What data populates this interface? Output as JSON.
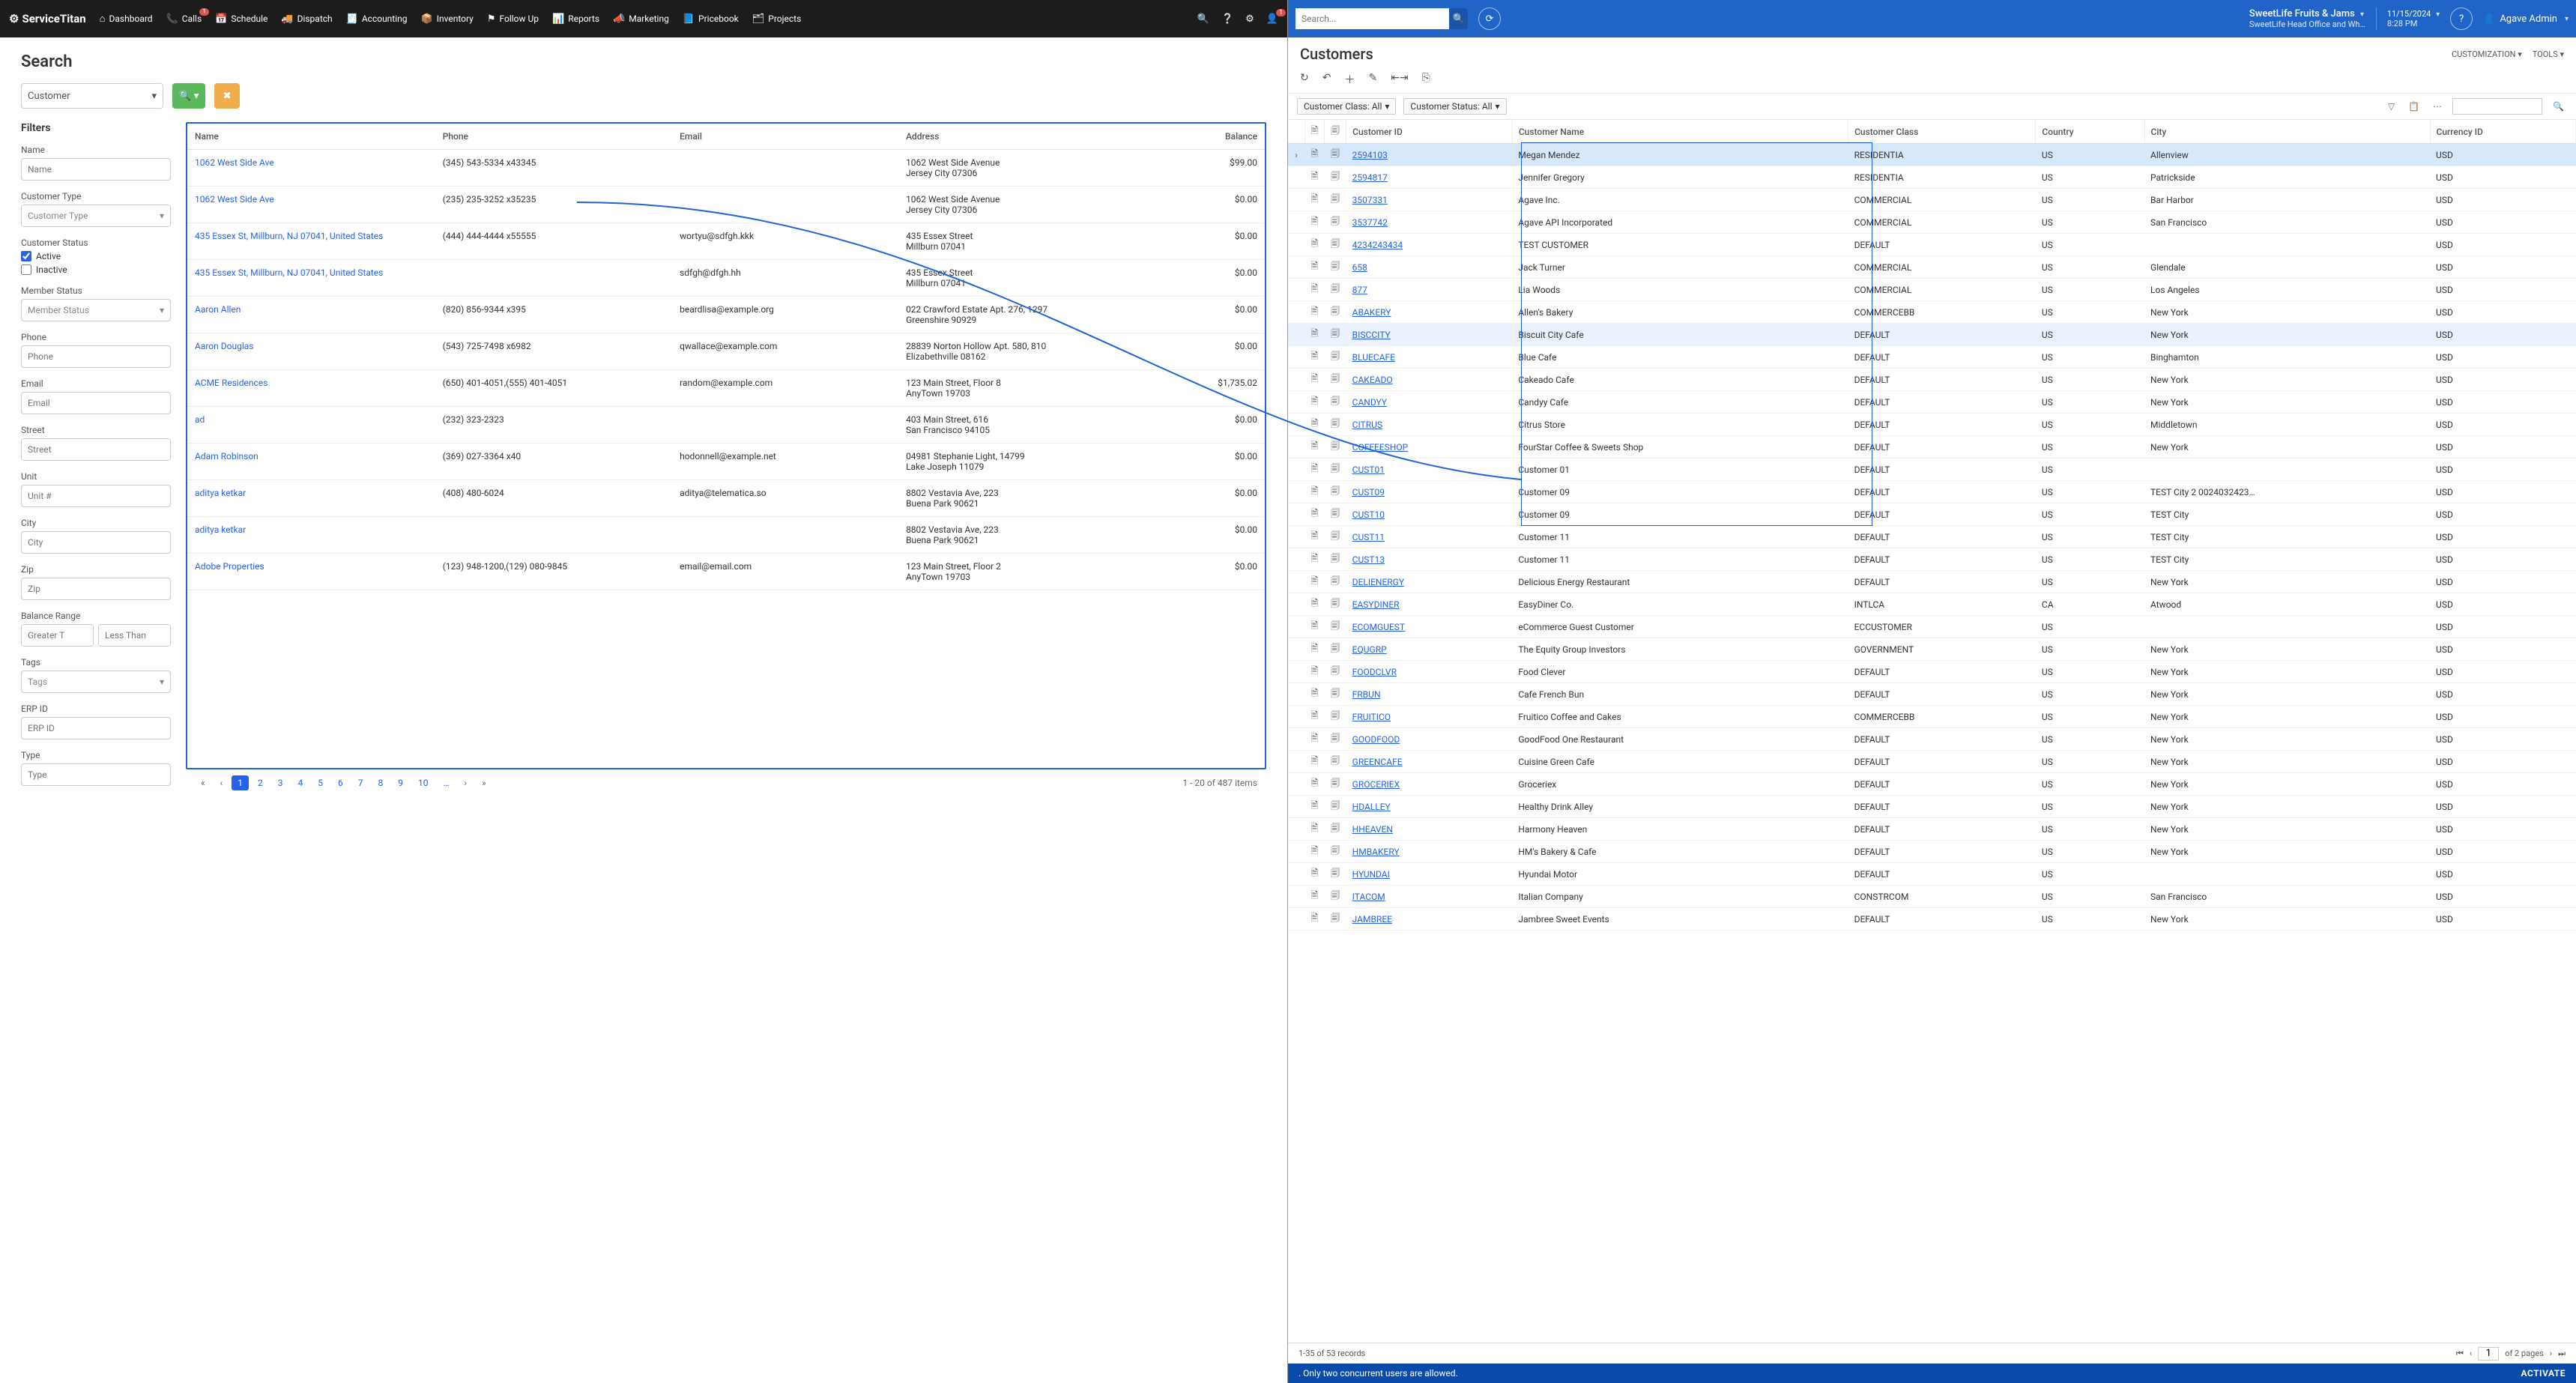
{
  "st": {
    "logo": "ServiceTitan",
    "nav": [
      "Dashboard",
      "Calls",
      "Schedule",
      "Dispatch",
      "Accounting",
      "Inventory",
      "Follow Up",
      "Reports",
      "Marketing",
      "Pricebook",
      "Projects"
    ],
    "nav_icons": [
      "⌂",
      "📞",
      "📅",
      "🚚",
      "🧾",
      "📦",
      "⚑",
      "📊",
      "📣",
      "📘",
      "🗂"
    ],
    "calls_badge": "1",
    "title": "Search",
    "entity": "Customer",
    "filters_heading": "Filters",
    "filters": {
      "name_lbl": "Name",
      "name_ph": "Name",
      "ctype_lbl": "Customer Type",
      "ctype_ph": "Customer Type",
      "cstatus_lbl": "Customer Status",
      "active": "Active",
      "inactive": "Inactive",
      "mstatus_lbl": "Member Status",
      "mstatus_ph": "Member Status",
      "phone_lbl": "Phone",
      "phone_ph": "Phone",
      "email_lbl": "Email",
      "email_ph": "Email",
      "street_lbl": "Street",
      "street_ph": "Street",
      "unit_lbl": "Unit",
      "unit_ph": "Unit #",
      "city_lbl": "City",
      "city_ph": "City",
      "zip_lbl": "Zip",
      "zip_ph": "Zip",
      "bal_lbl": "Balance Range",
      "bal_gt": "Greater T",
      "bal_lt": "Less Than",
      "tags_lbl": "Tags",
      "tags_ph": "Tags",
      "erp_lbl": "ERP ID",
      "erp_ph": "ERP ID",
      "type_lbl": "Type",
      "type_ph": "Type"
    },
    "cols": [
      "Name",
      "Phone",
      "Email",
      "Address",
      "Balance"
    ],
    "rows": [
      {
        "n": "1062 West Side Ave",
        "p": "(345) 543-5334 x43345",
        "e": "",
        "a": "1062 West Side Avenue\nJersey City 07306",
        "b": "$99.00"
      },
      {
        "n": "1062 West Side Ave",
        "p": "(235) 235-3252 x35235",
        "e": "",
        "a": "1062 West Side Avenue\nJersey City 07306",
        "b": "$0.00"
      },
      {
        "n": "435 Essex St, Millburn, NJ 07041, United States",
        "p": "(444) 444-4444 x55555",
        "e": "wortyu@sdfgh.kkk",
        "a": "435 Essex Street\nMillburn 07041",
        "b": "$0.00"
      },
      {
        "n": "435 Essex St, Millburn, NJ 07041, United States",
        "p": "",
        "e": "sdfgh@dfgh.hh",
        "a": "435 Essex Street\nMillburn 07041",
        "b": "$0.00"
      },
      {
        "n": "Aaron Allen",
        "p": "(820) 856-9344 x395",
        "e": "beardlisa@example.org",
        "a": "022 Crawford Estate Apt. 276, 1297\nGreenshire 90929",
        "b": "$0.00"
      },
      {
        "n": "Aaron Douglas",
        "p": "(543) 725-7498 x6982",
        "e": "qwallace@example.com",
        "a": "28839 Norton Hollow Apt. 580, 810\nElizabethville 08162",
        "b": "$0.00"
      },
      {
        "n": "ACME Residences",
        "p": "(650) 401-4051,(555) 401-4051",
        "e": "random@example.com",
        "a": "123 Main Street, Floor 8\nAnyTown 19703",
        "b": "$1,735.02"
      },
      {
        "n": "ad",
        "p": "(232) 323-2323",
        "e": "",
        "a": "403 Main Street, 616\nSan Francisco 94105",
        "b": "$0.00"
      },
      {
        "n": "Adam Robinson",
        "p": "(369) 027-3364 x40",
        "e": "hodonnell@example.net",
        "a": "04981 Stephanie Light, 14799\nLake Joseph 11079",
        "b": "$0.00"
      },
      {
        "n": "aditya ketkar",
        "p": "(408) 480-6024",
        "e": "aditya@telematica.so",
        "a": "8802 Vestavia Ave, 223\nBuena Park 90621",
        "b": "$0.00"
      },
      {
        "n": "aditya ketkar",
        "p": "",
        "e": "",
        "a": "8802 Vestavia Ave, 223\nBuena Park 90621",
        "b": "$0.00"
      },
      {
        "n": "Adobe Properties",
        "p": "(123) 948-1200,(129) 080-9845",
        "e": "email@email.com",
        "a": "123 Main Street, Floor 2\nAnyTown 19703",
        "b": "$0.00"
      }
    ],
    "pages": [
      "«",
      "‹",
      "1",
      "2",
      "3",
      "4",
      "5",
      "6",
      "7",
      "8",
      "9",
      "10",
      "…",
      "›",
      "»"
    ],
    "page_active": "1",
    "page_status": "1 - 20 of 487 items"
  },
  "ac": {
    "search_ph": "Search...",
    "tenant": "SweetLife Fruits & Jams",
    "tenant_sub": "SweetLife Head Office and Wh…",
    "date": "11/15/2024",
    "time": "8:28 PM",
    "user": "Agave Admin",
    "title": "Customers",
    "customization": "CUSTOMIZATION",
    "tools": "TOOLS",
    "filter_class": "Customer Class: All",
    "filter_status": "Customer Status: All",
    "cols": [
      "Customer ID",
      "Customer Name",
      "Customer Class",
      "Country",
      "City",
      "Currency ID"
    ],
    "rows": [
      {
        "id": "2594103",
        "nm": "Megan Mendez",
        "cl": "RESIDENTIA",
        "co": "US",
        "ci": "Allenview",
        "cu": "USD",
        "sel": 2
      },
      {
        "id": "2594817",
        "nm": "Jennifer Gregory",
        "cl": "RESIDENTIA",
        "co": "US",
        "ci": "Patrickside",
        "cu": "USD"
      },
      {
        "id": "3507331",
        "nm": "Agave Inc.",
        "cl": "COMMERCIAL",
        "co": "US",
        "ci": "Bar Harbor",
        "cu": "USD"
      },
      {
        "id": "3537742",
        "nm": "Agave API Incorporated",
        "cl": "COMMERCIAL",
        "co": "US",
        "ci": "San Francisco",
        "cu": "USD"
      },
      {
        "id": "4234243434",
        "nm": "TEST CUSTOMER",
        "cl": "DEFAULT",
        "co": "US",
        "ci": "",
        "cu": "USD"
      },
      {
        "id": "658",
        "nm": "Jack Turner",
        "cl": "COMMERCIAL",
        "co": "US",
        "ci": "Glendale",
        "cu": "USD"
      },
      {
        "id": "877",
        "nm": "Lia Woods",
        "cl": "COMMERCIAL",
        "co": "US",
        "ci": "Los Angeles",
        "cu": "USD"
      },
      {
        "id": "ABAKERY",
        "nm": "Allen's Bakery",
        "cl": "COMMERCEBB",
        "co": "US",
        "ci": "New York",
        "cu": "USD"
      },
      {
        "id": "BISCCITY",
        "nm": "Biscuit City Cafe",
        "cl": "DEFAULT",
        "co": "US",
        "ci": "New York",
        "cu": "USD",
        "sel": 1
      },
      {
        "id": "BLUECAFE",
        "nm": "Blue Cafe",
        "cl": "DEFAULT",
        "co": "US",
        "ci": "Binghamton",
        "cu": "USD"
      },
      {
        "id": "CAKEADO",
        "nm": "Cakeado Cafe",
        "cl": "DEFAULT",
        "co": "US",
        "ci": "New York",
        "cu": "USD"
      },
      {
        "id": "CANDYY",
        "nm": "Candyy Cafe",
        "cl": "DEFAULT",
        "co": "US",
        "ci": "New York",
        "cu": "USD"
      },
      {
        "id": "CITRUS",
        "nm": "Citrus Store",
        "cl": "DEFAULT",
        "co": "US",
        "ci": "Middletown",
        "cu": "USD"
      },
      {
        "id": "COFFEESHOP",
        "nm": "FourStar Coffee & Sweets Shop",
        "cl": "DEFAULT",
        "co": "US",
        "ci": "New York",
        "cu": "USD"
      },
      {
        "id": "CUST01",
        "nm": "Customer 01",
        "cl": "DEFAULT",
        "co": "US",
        "ci": "",
        "cu": "USD"
      },
      {
        "id": "CUST09",
        "nm": "Customer 09",
        "cl": "DEFAULT",
        "co": "US",
        "ci": "TEST City 2 0024032423…",
        "cu": "USD"
      },
      {
        "id": "CUST10",
        "nm": "Customer 09",
        "cl": "DEFAULT",
        "co": "US",
        "ci": "TEST City",
        "cu": "USD"
      },
      {
        "id": "CUST11",
        "nm": "Customer 11",
        "cl": "DEFAULT",
        "co": "US",
        "ci": "TEST City",
        "cu": "USD"
      },
      {
        "id": "CUST13",
        "nm": "Customer 11",
        "cl": "DEFAULT",
        "co": "US",
        "ci": "TEST City",
        "cu": "USD"
      },
      {
        "id": "DELIENERGY",
        "nm": "Delicious Energy Restaurant",
        "cl": "DEFAULT",
        "co": "US",
        "ci": "New York",
        "cu": "USD"
      },
      {
        "id": "EASYDINER",
        "nm": "EasyDiner Co.",
        "cl": "INTLCA",
        "co": "CA",
        "ci": "Atwood",
        "cu": "USD"
      },
      {
        "id": "ECOMGUEST",
        "nm": "eCommerce Guest Customer",
        "cl": "ECCUSTOMER",
        "co": "US",
        "ci": "",
        "cu": "USD"
      },
      {
        "id": "EQUGRP",
        "nm": "The Equity Group Investors",
        "cl": "GOVERNMENT",
        "co": "US",
        "ci": "New York",
        "cu": "USD"
      },
      {
        "id": "FOODCLVR",
        "nm": "Food Clever",
        "cl": "DEFAULT",
        "co": "US",
        "ci": "New York",
        "cu": "USD"
      },
      {
        "id": "FRBUN",
        "nm": "Cafe French Bun",
        "cl": "DEFAULT",
        "co": "US",
        "ci": "New York",
        "cu": "USD"
      },
      {
        "id": "FRUITICO",
        "nm": "Fruitico Coffee and Cakes",
        "cl": "COMMERCEBB",
        "co": "US",
        "ci": "New York",
        "cu": "USD"
      },
      {
        "id": "GOODFOOD",
        "nm": "GoodFood One Restaurant",
        "cl": "DEFAULT",
        "co": "US",
        "ci": "New York",
        "cu": "USD"
      },
      {
        "id": "GREENCAFE",
        "nm": "Cuisine Green Cafe",
        "cl": "DEFAULT",
        "co": "US",
        "ci": "New York",
        "cu": "USD"
      },
      {
        "id": "GROCERIEX",
        "nm": "Groceriex",
        "cl": "DEFAULT",
        "co": "US",
        "ci": "New York",
        "cu": "USD"
      },
      {
        "id": "HDALLEY",
        "nm": "Healthy Drink Alley",
        "cl": "DEFAULT",
        "co": "US",
        "ci": "New York",
        "cu": "USD"
      },
      {
        "id": "HHEAVEN",
        "nm": "Harmony Heaven",
        "cl": "DEFAULT",
        "co": "US",
        "ci": "New York",
        "cu": "USD"
      },
      {
        "id": "HMBAKERY",
        "nm": "HM's Bakery & Cafe",
        "cl": "DEFAULT",
        "co": "US",
        "ci": "New York",
        "cu": "USD"
      },
      {
        "id": "HYUNDAI",
        "nm": "Hyundai Motor",
        "cl": "DEFAULT",
        "co": "US",
        "ci": "",
        "cu": "USD"
      },
      {
        "id": "ITACOM",
        "nm": "Italian Company",
        "cl": "CONSTRCOM",
        "co": "US",
        "ci": "San Francisco",
        "cu": "USD"
      },
      {
        "id": "JAMBREE",
        "nm": "Jambree Sweet Events",
        "cl": "DEFAULT",
        "co": "US",
        "ci": "New York",
        "cu": "USD"
      }
    ],
    "rec_count": "1-35 of 53 records",
    "page_input": "1",
    "page_of": "of 2 pages",
    "banner": ". Only two concurrent users are allowed.",
    "activate": "ACTIVATE"
  }
}
